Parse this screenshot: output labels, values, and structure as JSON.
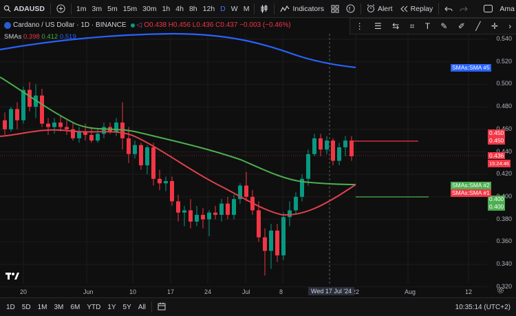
{
  "toolbar": {
    "symbol": "ADAUSD",
    "intervals": [
      "1m",
      "3m",
      "5m",
      "15m",
      "30m",
      "1h",
      "4h",
      "8h",
      "12h",
      "D",
      "W",
      "M"
    ],
    "active_interval": "D",
    "indicators_label": "Indicators",
    "alert_label": "Alert",
    "replay_label": "Replay",
    "account_label": "Ama"
  },
  "legend": {
    "title": "Cardano / US Dollar · 1D · BINANCE",
    "ohlc": "O0.438 H0.456 L0.436 C0.437 −0.003 (−0.46%)"
  },
  "smas": {
    "label": "SMAs",
    "v1": "0.398",
    "v2": "0.412",
    "v3": "0.519"
  },
  "colors": {
    "sma1": "#f23645",
    "sma2": "#4caf50",
    "sma3": "#2962ff",
    "up": "#089981",
    "down": "#f23645"
  },
  "price_axis": {
    "ticks": [
      "0.540",
      "0.520",
      "0.500",
      "0.480",
      "0.460",
      "0.440",
      "0.420",
      "0.400",
      "0.380",
      "0.360",
      "0.340",
      "0.320"
    ],
    "badge_high1": "0.450",
    "badge_high2": "0.450",
    "badge_price": "0.436",
    "badge_countdown": "15:24:46",
    "badge_low1": "0.400",
    "badge_low2": "0.400"
  },
  "sma_labels": {
    "sma5": "SMAs:SMA #5",
    "sma2": "SMAs:SMA #2",
    "sma1": "SMAs:SMA #1"
  },
  "time_axis": {
    "labels": [
      "20",
      "Jun",
      "10",
      "17",
      "24",
      "Jul",
      "8",
      "22",
      "Aug",
      "12"
    ],
    "crosshair": "Wed 17 Jul '24"
  },
  "bottom": {
    "ranges": [
      "1D",
      "5D",
      "1M",
      "3M",
      "6M",
      "YTD",
      "1Y",
      "5Y",
      "All"
    ],
    "clock": "10:35:14 (UTC+2)"
  },
  "chart_data": {
    "type": "candlestick",
    "ylim": [
      0.32,
      0.55
    ],
    "sma_values_last": {
      "sma1": 0.398,
      "sma2": 0.412,
      "sma5": 0.519
    }
  }
}
